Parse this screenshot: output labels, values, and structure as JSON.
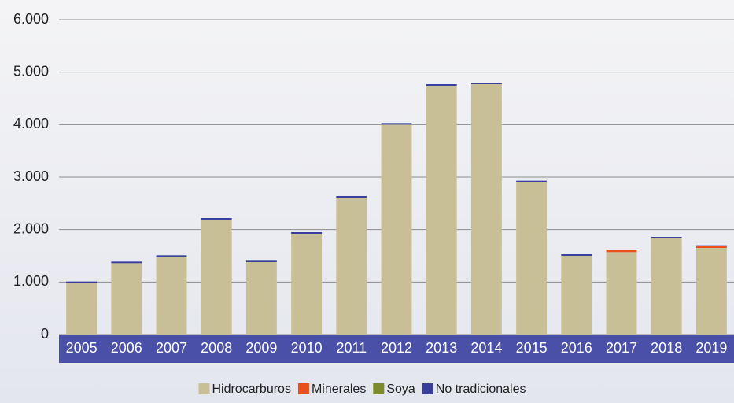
{
  "chart_data": {
    "type": "stacked_bar",
    "categories": [
      "2005",
      "2006",
      "2007",
      "2008",
      "2009",
      "2010",
      "2011",
      "2012",
      "2013",
      "2014",
      "2015",
      "2016",
      "2017",
      "2018",
      "2019"
    ],
    "series": [
      {
        "name": "Hidrocarburos",
        "color": "#c9bf97",
        "values": [
          980,
          1360,
          1470,
          2180,
          1380,
          1920,
          2610,
          4000,
          4740,
          4770,
          2910,
          1500,
          1570,
          1840,
          1650
        ]
      },
      {
        "name": "Minerales",
        "color": "#e8501e",
        "values": [
          0,
          0,
          0,
          0,
          0,
          0,
          0,
          0,
          0,
          0,
          0,
          0,
          40,
          0,
          30
        ]
      },
      {
        "name": "Soya",
        "color": "#7d8a2e",
        "values": [
          0,
          0,
          0,
          10,
          0,
          0,
          0,
          0,
          0,
          0,
          0,
          0,
          0,
          0,
          0
        ]
      },
      {
        "name": "No tradicionales",
        "color": "#3b3f9c",
        "values": [
          30,
          30,
          40,
          30,
          40,
          30,
          30,
          30,
          30,
          30,
          20,
          30,
          10,
          20,
          20
        ]
      }
    ],
    "ylim": [
      0,
      6000
    ],
    "yticks": [
      0,
      {
        "value": 1000,
        "label": "1.000"
      },
      {
        "value": 2000,
        "label": "2.000"
      },
      {
        "value": 3000,
        "label": "3.000"
      },
      {
        "value": 4000,
        "label": "4.000"
      },
      {
        "value": 5000,
        "label": "5.000"
      },
      {
        "value": 6000,
        "label": "6.000"
      }
    ],
    "grid": true,
    "legend": "bottom"
  }
}
